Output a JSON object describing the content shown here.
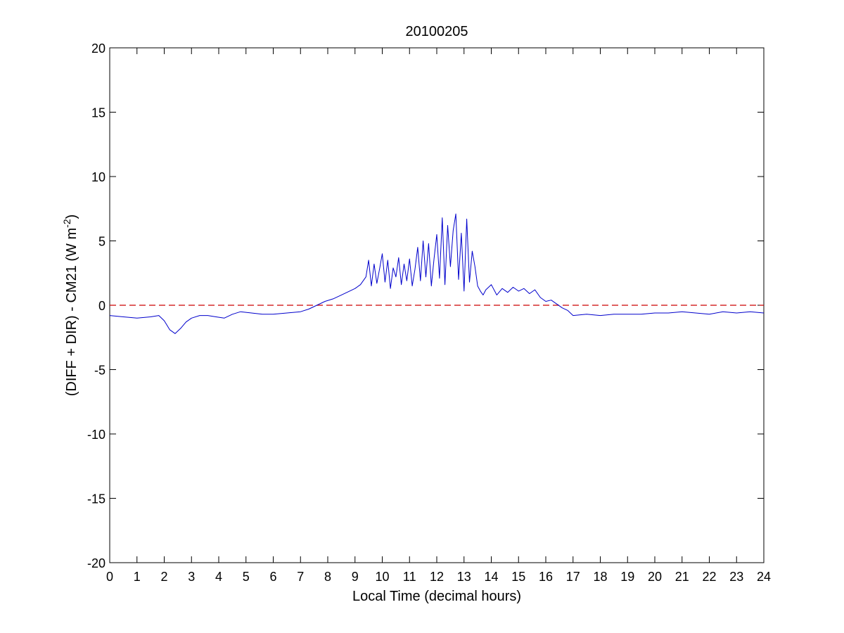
{
  "chart_data": {
    "type": "line",
    "title": "20100205",
    "xlabel": "Local Time (decimal hours)",
    "ylabel": {
      "main": "(DIFF + DIR) - CM21 (W m",
      "superscript": "-2",
      "close": ")"
    },
    "xlim": [
      0,
      24
    ],
    "ylim": [
      -20,
      20
    ],
    "xticks": [
      0,
      1,
      2,
      3,
      4,
      5,
      6,
      7,
      8,
      9,
      10,
      11,
      12,
      13,
      14,
      15,
      16,
      17,
      18,
      19,
      20,
      21,
      22,
      23,
      24
    ],
    "yticks": [
      -20,
      -15,
      -10,
      -5,
      0,
      5,
      10,
      15,
      20
    ],
    "grid": false,
    "series": [
      {
        "color": "#0000cc",
        "x": [
          0,
          0.5,
          1.0,
          1.5,
          1.8,
          2.0,
          2.2,
          2.4,
          2.6,
          2.8,
          3.0,
          3.3,
          3.6,
          3.9,
          4.2,
          4.5,
          4.8,
          5.2,
          5.6,
          6.0,
          6.5,
          7.0,
          7.3,
          7.6,
          7.9,
          8.2,
          8.5,
          8.8,
          9.0,
          9.2,
          9.4,
          9.5,
          9.6,
          9.7,
          9.8,
          9.9,
          10.0,
          10.1,
          10.2,
          10.3,
          10.4,
          10.5,
          10.6,
          10.7,
          10.8,
          10.9,
          11.0,
          11.1,
          11.2,
          11.3,
          11.4,
          11.5,
          11.6,
          11.7,
          11.8,
          11.9,
          12.0,
          12.1,
          12.2,
          12.3,
          12.4,
          12.5,
          12.6,
          12.7,
          12.8,
          12.9,
          13.0,
          13.1,
          13.2,
          13.3,
          13.4,
          13.5,
          13.6,
          13.7,
          13.8,
          14.0,
          14.2,
          14.4,
          14.6,
          14.8,
          15.0,
          15.2,
          15.4,
          15.6,
          15.8,
          16.0,
          16.2,
          16.4,
          16.6,
          16.8,
          17.0,
          17.5,
          18.0,
          18.5,
          19.0,
          19.5,
          20.0,
          20.5,
          21.0,
          21.5,
          22.0,
          22.5,
          23.0,
          23.5,
          24.0
        ],
        "y": [
          -0.8,
          -0.9,
          -1.0,
          -0.9,
          -0.8,
          -1.2,
          -1.9,
          -2.2,
          -1.8,
          -1.3,
          -1.0,
          -0.8,
          -0.8,
          -0.9,
          -1.0,
          -0.7,
          -0.5,
          -0.6,
          -0.7,
          -0.7,
          -0.6,
          -0.5,
          -0.3,
          0.0,
          0.3,
          0.5,
          0.8,
          1.1,
          1.3,
          1.6,
          2.2,
          3.5,
          1.5,
          3.2,
          1.7,
          2.8,
          4.0,
          1.8,
          3.5,
          1.3,
          2.9,
          2.2,
          3.7,
          1.6,
          3.2,
          1.9,
          3.6,
          1.5,
          2.8,
          4.5,
          1.9,
          5.0,
          2.2,
          4.8,
          1.5,
          3.6,
          5.5,
          2.1,
          6.8,
          1.6,
          6.2,
          3.0,
          5.8,
          7.1,
          2.0,
          5.6,
          1.1,
          6.7,
          1.8,
          4.2,
          3.0,
          1.5,
          1.1,
          0.8,
          1.2,
          1.6,
          0.8,
          1.3,
          1.0,
          1.4,
          1.1,
          1.3,
          0.9,
          1.2,
          0.6,
          0.3,
          0.4,
          0.1,
          -0.2,
          -0.4,
          -0.8,
          -0.7,
          -0.8,
          -0.7,
          -0.7,
          -0.7,
          -0.6,
          -0.6,
          -0.5,
          -0.6,
          -0.7,
          -0.5,
          -0.6,
          -0.5,
          -0.6
        ]
      }
    ],
    "reference_line": {
      "y": 0,
      "color": "#cc0000",
      "style": "dashed"
    }
  }
}
